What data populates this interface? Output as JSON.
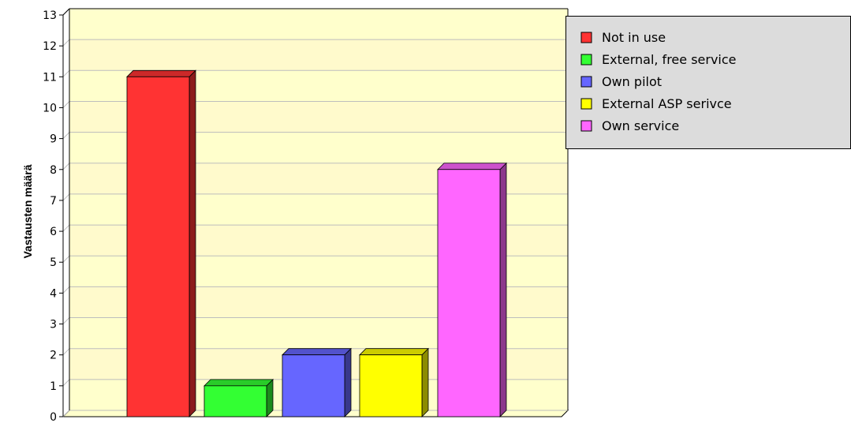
{
  "chart_data": {
    "type": "bar",
    "title": "",
    "xlabel": "",
    "ylabel": "Vastausten määrä",
    "ylim": [
      0,
      13
    ],
    "yticks": [
      "0",
      "1",
      "2",
      "3",
      "4",
      "5",
      "6",
      "7",
      "8",
      "9",
      "10",
      "11",
      "12",
      "13"
    ],
    "grid": true,
    "legend_position": "top-right",
    "categories": [
      "Not in use",
      "External, free service",
      "Own pilot",
      "External ASP serivce",
      "Own service"
    ],
    "values": [
      11,
      1,
      2,
      2,
      8
    ],
    "colors": [
      "#ff3333",
      "#33ff33",
      "#6666ff",
      "#ffff00",
      "#ff66ff"
    ],
    "background_bands": [
      "#ffffcc",
      "#fffacc"
    ]
  }
}
